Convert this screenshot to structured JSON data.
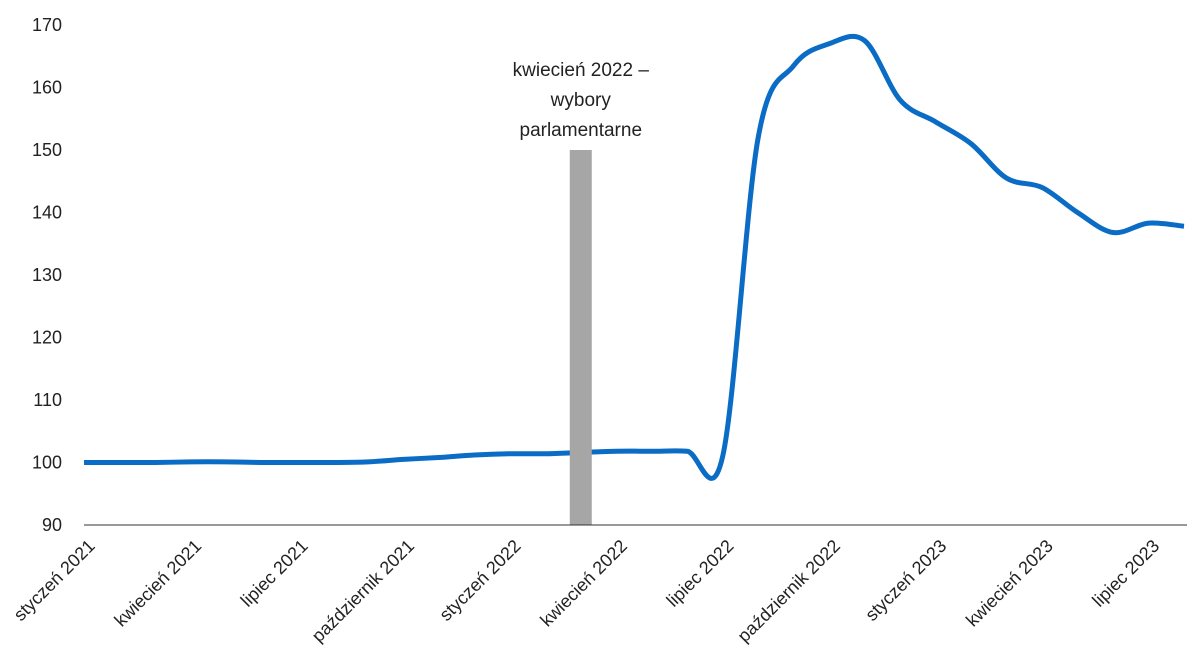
{
  "chart_data": {
    "type": "line",
    "categories": [
      "styczeń 2021",
      null,
      null,
      "kwiecień 2021",
      null,
      null,
      "lipiec 2021",
      null,
      null,
      "październik 2021",
      null,
      null,
      "styczeń 2022",
      null,
      null,
      "kwiecień 2022",
      null,
      null,
      "lipiec 2022",
      null,
      null,
      "październik 2022",
      null,
      null,
      "styczeń 2023",
      null,
      null,
      "kwiecień 2023",
      null,
      null,
      "lipiec 2023",
      null
    ],
    "series": [
      {
        "type": "line",
        "color": "#0a6cc4",
        "values": [
          100,
          100,
          100,
          100.1,
          100.1,
          100,
          100,
          100,
          100.1,
          100.5,
          100.8,
          101.2,
          101.4,
          101.4,
          101.6,
          101.8,
          101.8,
          101.8,
          101,
          152,
          163.5,
          167,
          167.5,
          158,
          154.5,
          151,
          145.5,
          144,
          140,
          136.8,
          138.3,
          137.8
        ]
      },
      {
        "type": "bar",
        "color": "#a6a6a6",
        "values": [
          null,
          null,
          null,
          null,
          null,
          null,
          null,
          null,
          null,
          null,
          null,
          null,
          null,
          null,
          150,
          null,
          null,
          null,
          null,
          null,
          null,
          null,
          null,
          null,
          null,
          null,
          null,
          null,
          null,
          null,
          null,
          null
        ]
      }
    ],
    "annotation": [
      "kwiecień 2022 –",
      "wybory",
      "parlamentarne"
    ],
    "ylim": [
      90,
      170
    ],
    "yticks": [
      90,
      100,
      110,
      120,
      130,
      140,
      150,
      160,
      170
    ],
    "grid": false
  }
}
